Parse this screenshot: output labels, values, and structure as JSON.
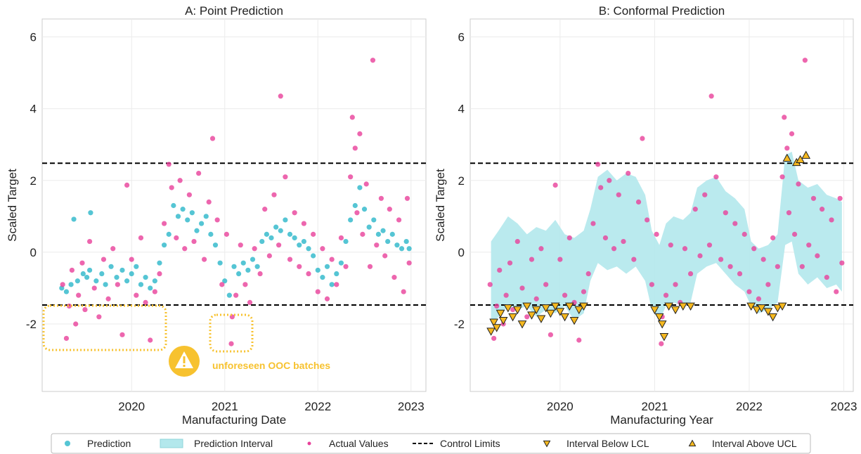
{
  "chart_data": [
    {
      "type": "scatter",
      "title": "A: Point Prediction",
      "xlabel": "Manufacturing Date",
      "ylabel": "Scaled Target",
      "xlim": [
        2019.04,
        2023.16
      ],
      "ylim": [
        -3.88,
        6.5
      ],
      "xticks": [
        2020,
        2021,
        2022,
        2023
      ],
      "yticks": [
        -2,
        0,
        2,
        4,
        6
      ],
      "grid": true,
      "control_limits": {
        "name": "Control Limits",
        "values": [
          2.48,
          -1.47
        ],
        "color": "#000000"
      },
      "annotation": "unforeseen OOC batches",
      "series": [
        {
          "name": "Prediction",
          "marker": "circle",
          "color": "#2bb7c9",
          "x": [
            2019.25,
            2019.3,
            2019.35,
            2019.38,
            2019.42,
            2019.48,
            2019.52,
            2019.55,
            2019.56,
            2019.62,
            2019.68,
            2019.72,
            2019.78,
            2019.84,
            2019.9,
            2019.95,
            2020.0,
            2020.05,
            2020.1,
            2020.15,
            2020.2,
            2020.25,
            2020.3,
            2020.35,
            2020.4,
            2020.45,
            2020.5,
            2020.55,
            2020.6,
            2020.65,
            2020.7,
            2020.75,
            2020.8,
            2020.85,
            2020.9,
            2020.95,
            2021.0,
            2021.05,
            2021.1,
            2021.15,
            2021.2,
            2021.25,
            2021.3,
            2021.35,
            2021.4,
            2021.45,
            2021.5,
            2021.55,
            2021.6,
            2021.65,
            2021.7,
            2021.75,
            2021.8,
            2021.85,
            2021.9,
            2021.95,
            2022.0,
            2022.05,
            2022.1,
            2022.15,
            2022.2,
            2022.25,
            2022.3,
            2022.35,
            2022.4,
            2022.45,
            2022.5,
            2022.55,
            2022.6,
            2022.65,
            2022.7,
            2022.75,
            2022.8,
            2022.85,
            2022.9,
            2022.95,
            2022.98
          ],
          "values": [
            -1.0,
            -1.1,
            -0.9,
            0.92,
            -0.8,
            -0.6,
            -0.7,
            -0.5,
            1.1,
            -0.8,
            -0.6,
            -0.9,
            -0.4,
            -0.7,
            -0.5,
            -0.8,
            -0.6,
            -0.4,
            -0.9,
            -0.7,
            -1.0,
            -0.8,
            -0.3,
            0.2,
            0.5,
            1.3,
            1.0,
            1.2,
            0.9,
            1.1,
            0.6,
            0.8,
            1.0,
            0.5,
            0.2,
            -0.3,
            -0.8,
            -1.2,
            -0.4,
            -0.6,
            -0.3,
            -0.5,
            -0.2,
            -0.4,
            0.3,
            0.5,
            0.4,
            0.7,
            0.6,
            0.9,
            0.5,
            0.4,
            0.2,
            0.3,
            0.1,
            -0.1,
            -0.5,
            -0.7,
            -0.4,
            -0.9,
            -0.6,
            -0.3,
            0.3,
            0.9,
            1.3,
            1.8,
            1.2,
            0.7,
            0.9,
            0.5,
            0.6,
            0.3,
            0.5,
            0.2,
            0.1,
            0.3,
            0.1
          ]
        },
        {
          "name": "Actual Values",
          "marker": "circle",
          "color": "#e8409a",
          "x": [
            2019.26,
            2019.3,
            2019.33,
            2019.36,
            2019.4,
            2019.43,
            2019.47,
            2019.5,
            2019.55,
            2019.6,
            2019.65,
            2019.7,
            2019.75,
            2019.8,
            2019.85,
            2019.9,
            2019.95,
            2020.0,
            2020.05,
            2020.1,
            2020.15,
            2020.2,
            2020.25,
            2020.3,
            2020.35,
            2020.4,
            2020.43,
            2020.48,
            2020.52,
            2020.57,
            2020.62,
            2020.67,
            2020.72,
            2020.78,
            2020.83,
            2020.87,
            2020.92,
            2020.97,
            2021.02,
            2021.07,
            2021.08,
            2021.12,
            2021.17,
            2021.22,
            2021.27,
            2021.32,
            2021.38,
            2021.43,
            2021.48,
            2021.53,
            2021.58,
            2021.6,
            2021.65,
            2021.7,
            2021.75,
            2021.8,
            2021.85,
            2021.9,
            2021.95,
            2022.0,
            2022.05,
            2022.1,
            2022.15,
            2022.2,
            2022.25,
            2022.3,
            2022.35,
            2022.37,
            2022.4,
            2022.42,
            2022.45,
            2022.48,
            2022.52,
            2022.56,
            2022.59,
            2022.63,
            2022.68,
            2022.72,
            2022.77,
            2022.82,
            2022.87,
            2022.92,
            2022.96,
            2022.98
          ],
          "values": [
            -0.9,
            -2.4,
            -1.5,
            -0.5,
            -2.0,
            -1.2,
            -0.3,
            -1.6,
            0.3,
            -1.0,
            -1.8,
            -0.2,
            -1.3,
            0.1,
            -0.9,
            -2.3,
            1.87,
            -0.2,
            -1.2,
            0.4,
            -1.4,
            -2.45,
            -1.1,
            -0.6,
            0.8,
            2.45,
            1.8,
            0.4,
            2.0,
            0.1,
            1.6,
            0.3,
            2.2,
            -0.2,
            1.4,
            3.17,
            0.9,
            -0.9,
            0.5,
            -2.55,
            -1.8,
            -1.2,
            0.2,
            -0.9,
            -1.4,
            0.1,
            -0.6,
            1.2,
            -0.1,
            1.6,
            0.2,
            4.35,
            2.1,
            -0.2,
            1.1,
            -0.4,
            0.8,
            -0.6,
            0.5,
            -1.1,
            0.1,
            -1.3,
            -0.2,
            -0.9,
            0.4,
            -0.4,
            2.1,
            3.76,
            2.9,
            1.1,
            3.3,
            0.5,
            1.9,
            -0.4,
            5.35,
            0.2,
            1.5,
            -0.1,
            1.2,
            -0.7,
            0.9,
            -1.1,
            1.5,
            -0.3
          ]
        }
      ]
    },
    {
      "type": "scatter",
      "title": "B: Conformal Prediction",
      "xlabel": "Manufacturing Year",
      "ylabel": "Scaled Target",
      "xlim": [
        2019.05,
        2023.1
      ],
      "ylim": [
        -3.88,
        6.5
      ],
      "xticks": [
        2020,
        2021,
        2022,
        2023
      ],
      "yticks": [
        -2,
        0,
        2,
        4,
        6
      ],
      "grid": true,
      "control_limits": {
        "name": "Control Limits",
        "values": [
          2.48,
          -1.47
        ],
        "color": "#000000"
      },
      "series": [
        {
          "name": "Prediction Interval",
          "marker": "band",
          "color": "#b3e8ec",
          "x": [
            2019.27,
            2019.35,
            2019.45,
            2019.55,
            2019.65,
            2019.75,
            2019.85,
            2019.95,
            2020.05,
            2020.15,
            2020.25,
            2020.32,
            2020.4,
            2020.5,
            2020.6,
            2020.7,
            2020.8,
            2020.9,
            2020.97,
            2021.05,
            2021.12,
            2021.2,
            2021.3,
            2021.38,
            2021.45,
            2021.55,
            2021.65,
            2021.75,
            2021.85,
            2021.95,
            2022.02,
            2022.1,
            2022.2,
            2022.3,
            2022.38,
            2022.45,
            2022.52,
            2022.62,
            2022.72,
            2022.82,
            2022.92,
            2022.98
          ],
          "lower": [
            -2.0,
            -1.8,
            -1.5,
            -1.6,
            -1.5,
            -1.8,
            -1.6,
            -1.7,
            -1.5,
            -1.9,
            -1.7,
            -0.8,
            -0.3,
            -0.5,
            -0.4,
            -0.6,
            -0.4,
            -0.8,
            -1.6,
            -1.9,
            -1.5,
            -1.4,
            -1.5,
            -1.4,
            -0.6,
            -0.4,
            -0.3,
            -0.6,
            -0.9,
            -1.1,
            -1.5,
            -1.7,
            -1.6,
            -1.4,
            0.2,
            0.3,
            -0.6,
            -0.9,
            -0.7,
            -1.0,
            -0.9,
            -1.1
          ],
          "upper": [
            0.3,
            0.6,
            1.0,
            0.8,
            0.5,
            0.7,
            0.6,
            0.9,
            0.5,
            0.4,
            0.6,
            1.2,
            2.1,
            2.3,
            2.0,
            2.2,
            2.1,
            1.6,
            0.6,
            0.2,
            0.8,
            1.0,
            0.9,
            1.1,
            1.8,
            2.0,
            2.1,
            1.7,
            1.5,
            1.2,
            0.3,
            0.1,
            0.2,
            0.5,
            2.7,
            2.8,
            2.0,
            1.8,
            1.9,
            1.6,
            1.5,
            1.4
          ]
        },
        {
          "name": "Actual Values",
          "marker": "circle",
          "color": "#e8409a",
          "x": [
            2019.26,
            2019.3,
            2019.33,
            2019.36,
            2019.4,
            2019.43,
            2019.47,
            2019.5,
            2019.55,
            2019.6,
            2019.65,
            2019.7,
            2019.75,
            2019.8,
            2019.85,
            2019.9,
            2019.95,
            2020.0,
            2020.05,
            2020.1,
            2020.15,
            2020.2,
            2020.25,
            2020.3,
            2020.35,
            2020.4,
            2020.43,
            2020.48,
            2020.52,
            2020.57,
            2020.62,
            2020.67,
            2020.72,
            2020.78,
            2020.83,
            2020.87,
            2020.92,
            2020.97,
            2021.02,
            2021.07,
            2021.08,
            2021.12,
            2021.17,
            2021.22,
            2021.27,
            2021.32,
            2021.38,
            2021.43,
            2021.48,
            2021.53,
            2021.58,
            2021.6,
            2021.65,
            2021.7,
            2021.75,
            2021.8,
            2021.85,
            2021.9,
            2021.95,
            2022.0,
            2022.05,
            2022.1,
            2022.15,
            2022.2,
            2022.25,
            2022.3,
            2022.35,
            2022.37,
            2022.4,
            2022.42,
            2022.45,
            2022.48,
            2022.52,
            2022.56,
            2022.59,
            2022.63,
            2022.68,
            2022.72,
            2022.77,
            2022.82,
            2022.87,
            2022.92,
            2022.96,
            2022.98
          ],
          "values": [
            -0.9,
            -2.4,
            -1.5,
            -0.5,
            -2.0,
            -1.2,
            -0.3,
            -1.6,
            0.3,
            -1.0,
            -1.8,
            -0.2,
            -1.3,
            0.1,
            -0.9,
            -2.3,
            1.87,
            -0.2,
            -1.2,
            0.4,
            -1.4,
            -2.45,
            -1.1,
            -0.6,
            0.8,
            2.45,
            1.8,
            0.4,
            2.0,
            0.1,
            1.6,
            0.3,
            2.2,
            -0.2,
            1.4,
            3.17,
            0.9,
            -0.9,
            0.5,
            -2.55,
            -1.8,
            -1.2,
            0.2,
            -0.9,
            -1.4,
            0.1,
            -0.6,
            1.2,
            -0.1,
            1.6,
            0.2,
            4.35,
            2.1,
            -0.2,
            1.1,
            -0.4,
            0.8,
            -0.6,
            0.5,
            -1.1,
            0.1,
            -1.3,
            -0.2,
            -0.9,
            0.4,
            -0.4,
            2.1,
            3.76,
            2.9,
            1.1,
            3.3,
            0.5,
            1.9,
            -0.4,
            5.35,
            0.2,
            1.5,
            -0.1,
            1.2,
            -0.7,
            0.9,
            -1.1,
            1.5,
            -0.3
          ]
        },
        {
          "name": "Interval Below LCL",
          "marker": "triangle-down",
          "color": "#f5b81f",
          "x": [
            2019.27,
            2019.3,
            2019.33,
            2019.37,
            2019.4,
            2019.45,
            2019.5,
            2019.55,
            2019.6,
            2019.65,
            2019.7,
            2019.75,
            2019.8,
            2019.85,
            2019.9,
            2019.95,
            2020.0,
            2020.05,
            2020.1,
            2020.15,
            2020.2,
            2020.25,
            2021.0,
            2021.05,
            2021.08,
            2021.1,
            2021.15,
            2021.22,
            2021.3,
            2021.38,
            2022.02,
            2022.08,
            2022.13,
            2022.2,
            2022.25,
            2022.3,
            2022.35
          ],
          "values": [
            -2.2,
            -1.95,
            -2.1,
            -1.7,
            -1.9,
            -1.55,
            -1.8,
            -1.6,
            -2.0,
            -1.5,
            -1.75,
            -1.6,
            -1.85,
            -1.55,
            -1.7,
            -1.5,
            -1.65,
            -1.8,
            -1.5,
            -1.9,
            -1.6,
            -1.5,
            -1.6,
            -1.8,
            -2.0,
            -2.35,
            -1.5,
            -1.6,
            -1.5,
            -1.5,
            -1.5,
            -1.6,
            -1.55,
            -1.65,
            -1.8,
            -1.55,
            -1.5
          ]
        },
        {
          "name": "Interval Above UCL",
          "marker": "triangle-up",
          "color": "#f5b81f",
          "x": [
            2022.4,
            2022.5,
            2022.54,
            2022.6
          ],
          "values": [
            2.62,
            2.5,
            2.58,
            2.7
          ]
        }
      ]
    }
  ]
}
